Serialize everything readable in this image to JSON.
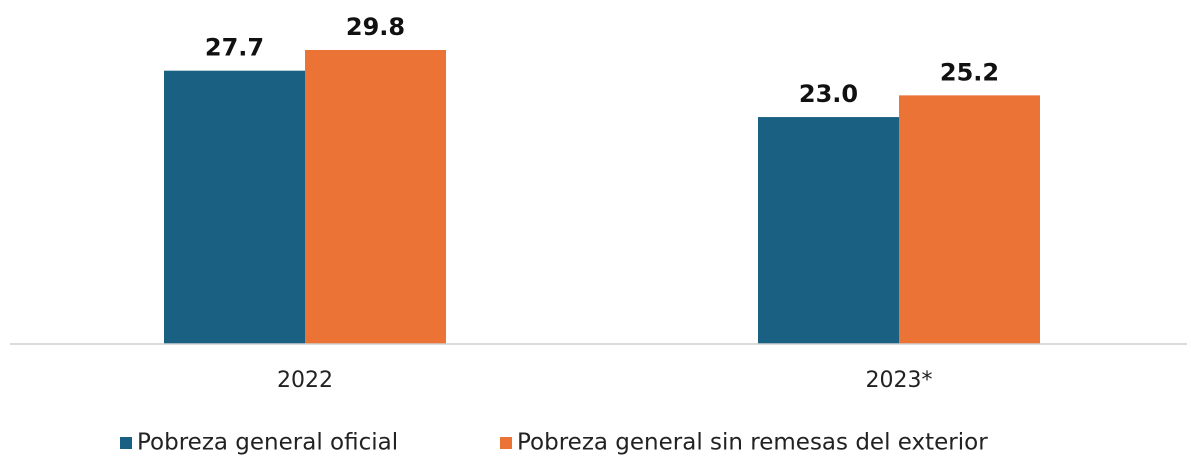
{
  "chart_data": {
    "type": "bar",
    "categories": [
      "2022",
      "2023*"
    ],
    "series": [
      {
        "name": "Pobreza general oficial",
        "color": "#1a6082",
        "values": [
          27.7,
          23.0
        ],
        "value_labels": [
          "27.7",
          "23.0"
        ]
      },
      {
        "name": "Pobreza general sin remesas del exterior",
        "color": "#ea7335",
        "values": [
          29.8,
          25.2
        ],
        "value_labels": [
          "29.8",
          "25.2"
        ]
      }
    ],
    "ylim": [
      0,
      30
    ]
  }
}
